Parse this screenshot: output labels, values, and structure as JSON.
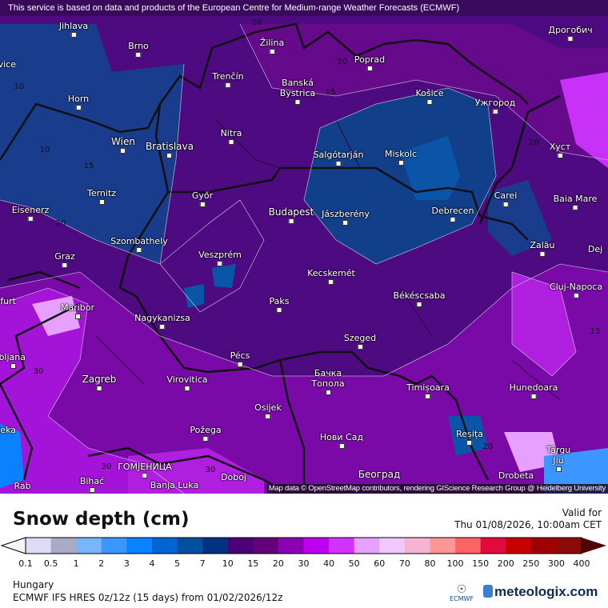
{
  "map": {
    "disclaimer": "This service is based on data and products of the European Centre for Medium-range Weather Forecasts (ECMWF)",
    "attribution": "Map data © OpenStreetMap contributors, rendering GIScience Research Group @ Heidelberg University",
    "cities": [
      "Jihlava",
      "Brno",
      "České Budějovice",
      "Horn",
      "Wien",
      "Bratislava",
      "Trenčín",
      "Žilina",
      "Banská Bystrica",
      "Poprad",
      "Košice",
      "Ужгород",
      "Дрогобич",
      "Хуст",
      "Nitra",
      "Salgótarján",
      "Miskolc",
      "Ternitz",
      "Eisenerz",
      "Győr",
      "Budapest",
      "Jászberény",
      "Debrecen",
      "Carei",
      "Baia Mare",
      "Szombathely",
      "Graz",
      "Veszprém",
      "Zalău",
      "Dej",
      "Kecskemét",
      "Cluj-Napoca",
      "Klagenfurt",
      "Maribor",
      "Nagykanizsa",
      "Paks",
      "Békéscsaba",
      "Ljubljana",
      "Szeged",
      "Pécs",
      "Zagreb",
      "Virovitica",
      "Бачка Топола",
      "Timișoara",
      "Hunedoara",
      "Osijek",
      "Rijeka",
      "Požega",
      "Нови Сад",
      "Reșița",
      "Târgu Jiu",
      "ГОМЈЕНИЦА",
      "Bihać",
      "Banja Luka",
      "Doboj",
      "Београд",
      "Drobeta",
      "Rab"
    ],
    "contour_labels": [
      "10",
      "10",
      "15",
      "20",
      "20",
      "15",
      "20",
      "20",
      "30",
      "30",
      "30",
      "20",
      "15"
    ]
  },
  "legend": {
    "title": "Snow depth (cm)",
    "valid_label": "Valid for",
    "valid_time": "Thu 01/08/2026, 10:00am CET",
    "ticks": [
      "0.1",
      "0.5",
      "1",
      "2",
      "3",
      "4",
      "5",
      "7",
      "10",
      "15",
      "20",
      "30",
      "40",
      "50",
      "60",
      "70",
      "80",
      "100",
      "150",
      "200",
      "250",
      "300",
      "400"
    ],
    "colors": [
      "#dcdcf5",
      "#aaaac8",
      "#78b4ff",
      "#3c96ff",
      "#0a82ff",
      "#0064d2",
      "#0050a0",
      "#003282",
      "#4b0078",
      "#640078",
      "#8c00b4",
      "#be00f0",
      "#d232ff",
      "#e6a0ff",
      "#f0c8ff",
      "#f5b4d2",
      "#ff9696",
      "#ff6464",
      "#e10a3c",
      "#c80000",
      "#a00000",
      "#8c0a0a"
    ],
    "under_color": "#f5f5f5",
    "over_color": "#500000"
  },
  "footer": {
    "region": "Hungary",
    "model": "ECMWF IFS HRES 0z/12z (15 days) from  01/02/2026/12z",
    "ecmwf_logo": "ECMWF",
    "brand": "meteologix.com"
  }
}
